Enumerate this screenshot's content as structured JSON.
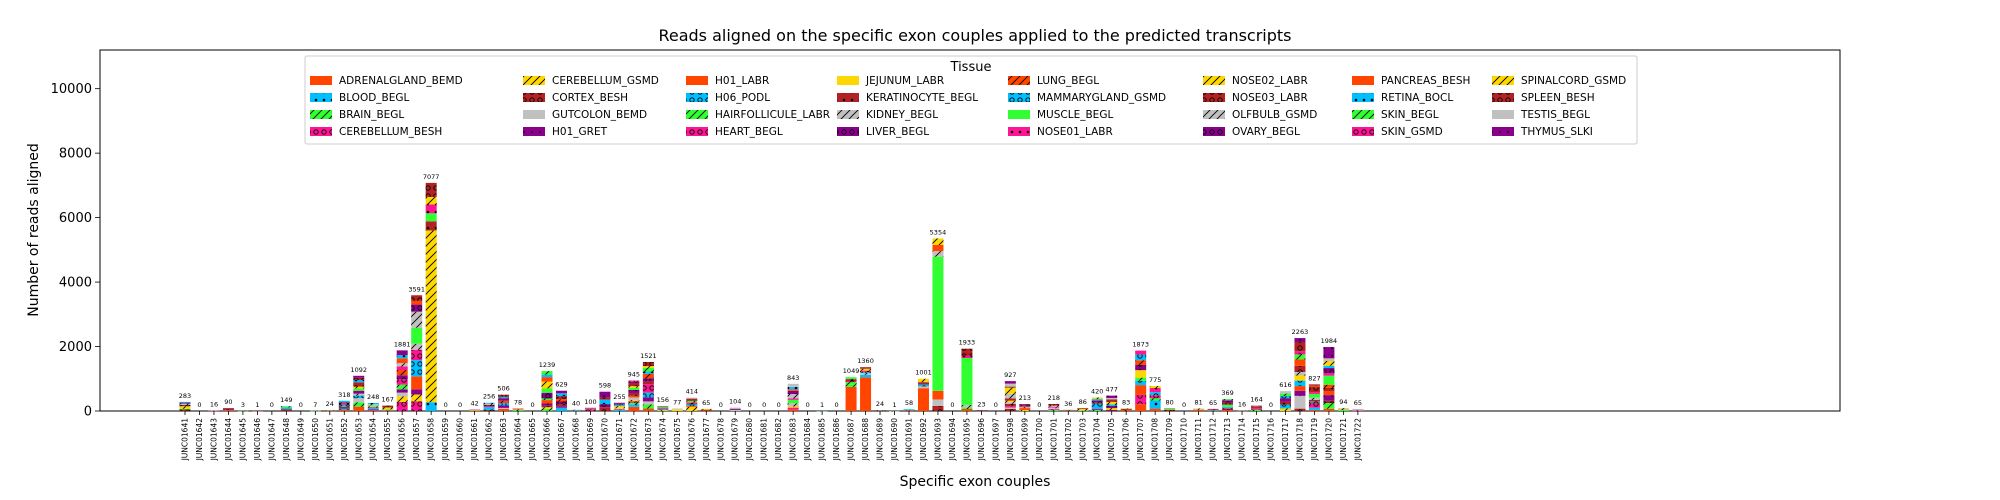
{
  "chart_data": {
    "type": "bar",
    "stacked": true,
    "title": "Reads aligned on the specific exon couples applied to the predicted transcripts",
    "xlabel": "Specific exon couples",
    "ylabel": "Number of reads aligned",
    "ylim": [
      0,
      11200
    ],
    "yticks": [
      0,
      2000,
      4000,
      6000,
      8000,
      10000
    ],
    "grid": false,
    "legend": {
      "title": "Tissue",
      "placement": "top-center",
      "columns": 8
    },
    "categories": [
      "JUNC01641",
      "JUNC01642",
      "JUNC01643",
      "JUNC01644",
      "JUNC01645",
      "JUNC01646",
      "JUNC01647",
      "JUNC01648",
      "JUNC01649",
      "JUNC01650",
      "JUNC01651",
      "JUNC01652",
      "JUNC01653",
      "JUNC01654",
      "JUNC01655",
      "JUNC01656",
      "JUNC01657",
      "JUNC01658",
      "JUNC01659",
      "JUNC01660",
      "JUNC01661",
      "JUNC01662",
      "JUNC01663",
      "JUNC01664",
      "JUNC01665",
      "JUNC01666",
      "JUNC01667",
      "JUNC01668",
      "JUNC01669",
      "JUNC01670",
      "JUNC01671",
      "JUNC01672",
      "JUNC01673",
      "JUNC01674",
      "JUNC01675",
      "JUNC01676",
      "JUNC01677",
      "JUNC01678",
      "JUNC01679",
      "JUNC01680",
      "JUNC01681",
      "JUNC01682",
      "JUNC01683",
      "JUNC01684",
      "JUNC01685",
      "JUNC01686",
      "JUNC01687",
      "JUNC01688",
      "JUNC01689",
      "JUNC01690",
      "JUNC01691",
      "JUNC01692",
      "JUNC01693",
      "JUNC01694",
      "JUNC01695",
      "JUNC01696",
      "JUNC01697",
      "JUNC01698",
      "JUNC01699",
      "JUNC01700",
      "JUNC01701",
      "JUNC01702",
      "JUNC01703",
      "JUNC01704",
      "JUNC01705",
      "JUNC01706",
      "JUNC01707",
      "JUNC01708",
      "JUNC01709",
      "JUNC01710",
      "JUNC01711",
      "JUNC01712",
      "JUNC01713",
      "JUNC01714",
      "JUNC01715",
      "JUNC01716",
      "JUNC01717",
      "JUNC01718",
      "JUNC01719",
      "JUNC01720",
      "JUNC01721",
      "JUNC01722"
    ],
    "totals": [
      283,
      0,
      16,
      90,
      3,
      1,
      0,
      149,
      0,
      7,
      24,
      318,
      1092,
      248,
      167,
      1881,
      3591,
      7077,
      0,
      0,
      42,
      256,
      506,
      78,
      0,
      1239,
      629,
      40,
      100,
      598,
      255,
      945,
      1521,
      156,
      77,
      414,
      65,
      0,
      104,
      0,
      0,
      0,
      843,
      0,
      1,
      0,
      1049,
      1360,
      24,
      1,
      58,
      1001,
      5354,
      0,
      1933,
      23,
      0,
      927,
      213,
      0,
      218,
      36,
      86,
      420,
      477,
      83,
      1873,
      775,
      80,
      0,
      81,
      65,
      369,
      16,
      164,
      0,
      616,
      2263,
      827,
      1984,
      94,
      65
    ],
    "series": [
      {
        "name": "ADRENALGLAND_BEMD",
        "color": "#FF4500",
        "hatch": "none"
      },
      {
        "name": "BLOOD_BEGL",
        "color": "#00BFFF",
        "hatch": "star"
      },
      {
        "name": "BRAIN_BEGL",
        "color": "#32FF32",
        "hatch": "slash"
      },
      {
        "name": "CEREBELLUM_BESH",
        "color": "#FF1493",
        "hatch": "ring"
      },
      {
        "name": "CEREBELLUM_GSMD",
        "color": "#FFD700",
        "hatch": "slash"
      },
      {
        "name": "CORTEX_BESH",
        "color": "#B22222",
        "hatch": "ring"
      },
      {
        "name": "GUTCOLON_BEMD",
        "color": "#C0C0C0",
        "hatch": "none"
      },
      {
        "name": "H01_GRET",
        "color": "#8B008B",
        "hatch": "dot"
      },
      {
        "name": "H01_LABR",
        "color": "#FF4500",
        "hatch": "none"
      },
      {
        "name": "H06_PODL",
        "color": "#00BFFF",
        "hatch": "ring"
      },
      {
        "name": "HAIRFOLLICULE_LABR",
        "color": "#32FF32",
        "hatch": "slash"
      },
      {
        "name": "HEART_BEGL",
        "color": "#FF1493",
        "hatch": "ring"
      },
      {
        "name": "JEJUNUM_LABR",
        "color": "#FFD700",
        "hatch": "none"
      },
      {
        "name": "KERATINOCYTE_BEGL",
        "color": "#B22222",
        "hatch": "star"
      },
      {
        "name": "KIDNEY_BEGL",
        "color": "#C0C0C0",
        "hatch": "slash"
      },
      {
        "name": "LIVER_BEGL",
        "color": "#8B008B",
        "hatch": "ring"
      },
      {
        "name": "LUNG_BEGL",
        "color": "#FF4500",
        "hatch": "slash"
      },
      {
        "name": "MAMMARYGLAND_GSMD",
        "color": "#00BFFF",
        "hatch": "ring"
      },
      {
        "name": "MUSCLE_BEGL",
        "color": "#32FF32",
        "hatch": "none"
      },
      {
        "name": "NOSE01_LABR",
        "color": "#FF1493",
        "hatch": "star"
      },
      {
        "name": "NOSE02_LABR",
        "color": "#FFD700",
        "hatch": "slash"
      },
      {
        "name": "NOSE03_LABR",
        "color": "#B22222",
        "hatch": "ring"
      },
      {
        "name": "OLFBULB_GSMD",
        "color": "#C0C0C0",
        "hatch": "slash"
      },
      {
        "name": "OVARY_BEGL",
        "color": "#8B008B",
        "hatch": "ring"
      },
      {
        "name": "PANCREAS_BESH",
        "color": "#FF4500",
        "hatch": "none"
      },
      {
        "name": "RETINA_BOCL",
        "color": "#00BFFF",
        "hatch": "star"
      },
      {
        "name": "SKIN_BEGL",
        "color": "#32FF32",
        "hatch": "slash"
      },
      {
        "name": "SKIN_GSMD",
        "color": "#FF1493",
        "hatch": "ring"
      },
      {
        "name": "SPINALCORD_GSMD",
        "color": "#FFD700",
        "hatch": "slash"
      },
      {
        "name": "SPLEEN_BESH",
        "color": "#B22222",
        "hatch": "ring"
      },
      {
        "name": "TESTIS_BEGL",
        "color": "#C0C0C0",
        "hatch": "none"
      },
      {
        "name": "THYMUS_SLKI",
        "color": "#8B008B",
        "hatch": "dot"
      }
    ],
    "dominant_series": {
      "JUNC01658": "CEREBELLUM_GSMD",
      "JUNC01687": "ADRENALGLAND_BEMD",
      "JUNC01688": "ADRENALGLAND_BEMD",
      "JUNC01692": "ADRENALGLAND_BEMD",
      "JUNC01693": "MUSCLE_BEGL",
      "JUNC01695": "MUSCLE_BEGL"
    }
  }
}
